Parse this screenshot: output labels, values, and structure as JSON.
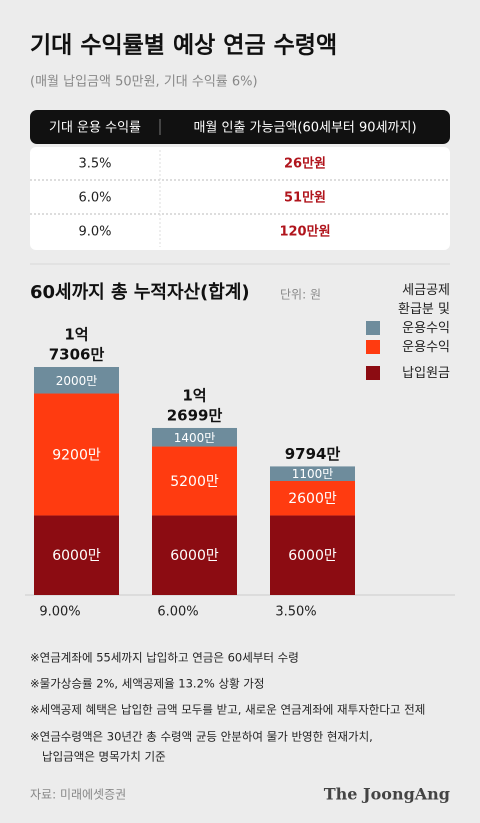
{
  "title": "기대 수익률별 예상 연금 수령액",
  "subtitle": "(매월 납입금액 50만원, 기대 수익률 6%)",
  "table": {
    "headers": [
      "기대 운용 수익률",
      "매월 인출 가능금액(60세부터 90세까지)"
    ],
    "rows": [
      [
        "3.5%",
        "26만원"
      ],
      [
        "6.0%",
        "51만원"
      ],
      [
        "9.0%",
        "120만원"
      ]
    ]
  },
  "chart_data": {
    "type": "stacked_bar",
    "title": "60세까지 총 누적자산(합계)",
    "unit": "단위: 원",
    "categories": [
      "9.00%",
      "6.00%",
      "3.50%"
    ],
    "series": [
      {
        "name": "납입원금",
        "color": "#8c0c12",
        "values": [
          6000,
          6000,
          6000
        ],
        "value_labels": [
          "6000만",
          "6000만",
          "6000만"
        ]
      },
      {
        "name": "운용수익",
        "color": "#ff3b10",
        "values": [
          9200,
          5200,
          2600
        ],
        "value_labels": [
          "9200만",
          "5200만",
          "2600만"
        ]
      },
      {
        "name": "세금공제 환급분 및 운용수익",
        "color": "#6e8c9c",
        "values": [
          2000,
          1400,
          1100
        ],
        "value_labels": [
          "2000만",
          "1400만",
          "1100만"
        ]
      }
    ],
    "total_labels": [
      [
        "1억",
        "7306만"
      ],
      [
        "1억",
        "2699만"
      ],
      [
        "9794만"
      ]
    ]
  },
  "notes": [
    "※연금계좌에 55세까지 납입하고 연금은 60세부터 수령",
    "※물가상승률 2%, 세액공제율 13.2% 상황 가정",
    "※세액공제 혜택은 납입한 금액 모두를 받고, 새로운 연금계좌에 재투자한다고 전제",
    "※연금수령액은 30년간 총 수령액 균등 안분하여 물가 반영한 현재가치,",
    "납입금액은 명목가치 기준"
  ],
  "source": "자료: 미래에셋증권",
  "brand": "The JoongAng"
}
